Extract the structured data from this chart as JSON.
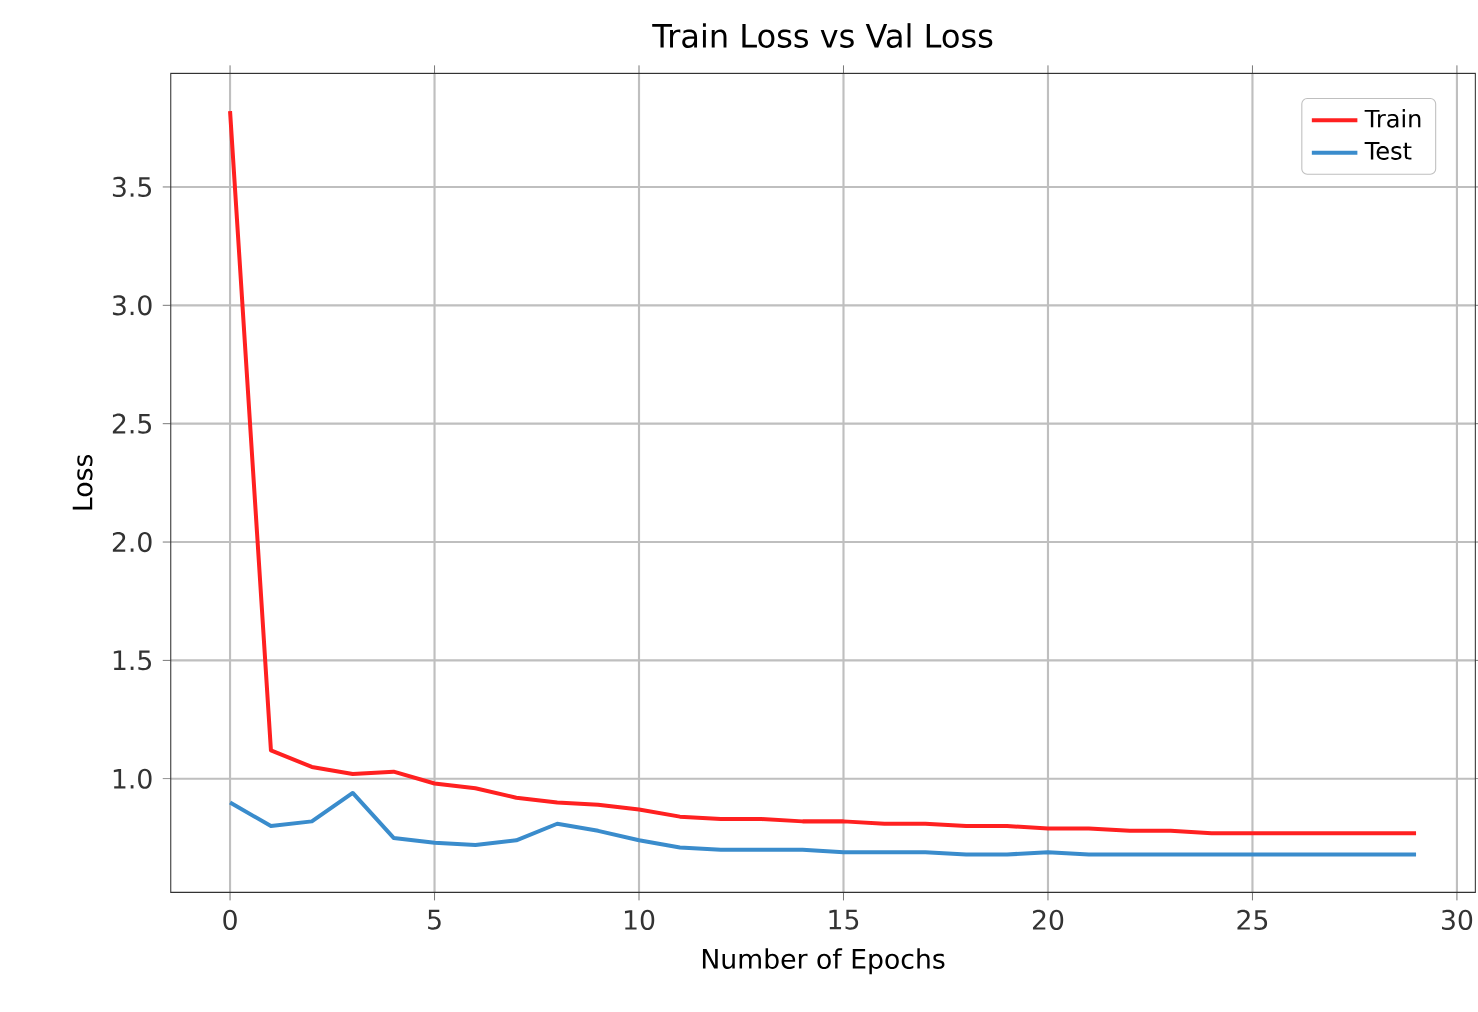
{
  "chart_data": {
    "type": "line",
    "title": "Train Loss vs Val Loss",
    "xlabel": "Number of Epochs",
    "ylabel": "Loss",
    "x": [
      0,
      1,
      2,
      3,
      4,
      5,
      6,
      7,
      8,
      9,
      10,
      11,
      12,
      13,
      14,
      15,
      16,
      17,
      18,
      19,
      20,
      21,
      22,
      23,
      24,
      25,
      26,
      27,
      28,
      29
    ],
    "series": [
      {
        "name": "Train",
        "color": "#ff2020",
        "values": [
          3.82,
          1.12,
          1.05,
          1.02,
          1.03,
          0.98,
          0.96,
          0.92,
          0.9,
          0.89,
          0.87,
          0.84,
          0.83,
          0.83,
          0.82,
          0.82,
          0.81,
          0.81,
          0.8,
          0.8,
          0.79,
          0.79,
          0.78,
          0.78,
          0.77,
          0.77,
          0.77,
          0.77,
          0.77,
          0.77
        ]
      },
      {
        "name": "Test",
        "color": "#3a8ccc",
        "values": [
          0.9,
          0.8,
          0.82,
          0.94,
          0.75,
          0.73,
          0.72,
          0.74,
          0.81,
          0.78,
          0.74,
          0.71,
          0.7,
          0.7,
          0.7,
          0.69,
          0.69,
          0.69,
          0.68,
          0.68,
          0.69,
          0.68,
          0.68,
          0.68,
          0.68,
          0.68,
          0.68,
          0.68,
          0.68,
          0.68
        ]
      }
    ],
    "xlim": [
      -1.45,
      30.45
    ],
    "ylim": [
      0.52,
      3.98
    ],
    "xticks": [
      0,
      5,
      10,
      15,
      20,
      25,
      30
    ],
    "yticks": [
      {
        "value": 1.0,
        "label": "1.0"
      },
      {
        "value": 1.5,
        "label": "1.5"
      },
      {
        "value": 2.0,
        "label": "2.0"
      },
      {
        "value": 2.5,
        "label": "2.5"
      },
      {
        "value": 3.0,
        "label": "3.0"
      },
      {
        "value": 3.5,
        "label": "3.5"
      }
    ],
    "grid": true,
    "legend": "top right",
    "line_style": "solid"
  }
}
